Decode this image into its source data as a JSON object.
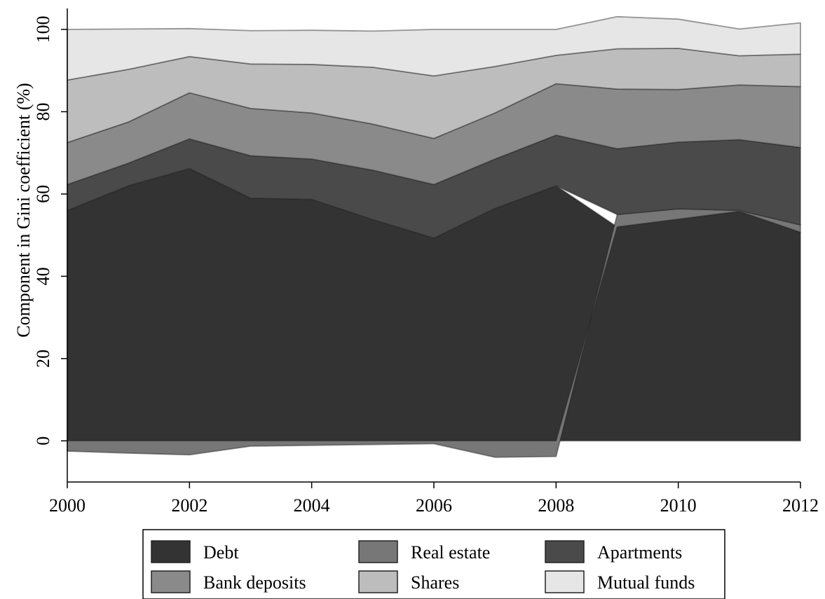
{
  "chart_data": {
    "type": "area",
    "title": "",
    "xlabel": "",
    "ylabel": "Component in Gini coefficient (%)",
    "x": [
      2000,
      2001,
      2002,
      2003,
      2004,
      2005,
      2006,
      2007,
      2008,
      2009,
      2010,
      2011,
      2012
    ],
    "xlim": [
      2000,
      2012
    ],
    "ylim": [
      -10,
      100
    ],
    "xticks": [
      2000,
      2002,
      2004,
      2006,
      2008,
      2010,
      2012
    ],
    "yticks": [
      0,
      20,
      40,
      60,
      80,
      100
    ],
    "stacked": true,
    "grid": false,
    "legend_position": "bottom",
    "legend_columns": 3,
    "series": [
      {
        "name": "Debt",
        "color": "#333333",
        "values": [
          56,
          62,
          66.2,
          59,
          58.7,
          53.8,
          49.3,
          56.5,
          62,
          52,
          53.9,
          55.8,
          50.7
        ]
      },
      {
        "name": "Real estate",
        "color": "#777777",
        "values": [
          -2.5,
          -3,
          -3.4,
          -1.3,
          -1.1,
          -0.9,
          -0.7,
          -4,
          -3.8,
          3,
          2.5,
          0.2,
          1.8
        ]
      },
      {
        "name": "Apartments",
        "color": "#4a4a4a",
        "values": [
          6.3,
          5.5,
          7.2,
          10.3,
          9.8,
          12,
          13,
          12,
          12.3,
          16,
          16.2,
          17.2,
          18.8
        ]
      },
      {
        "name": "Bank deposits",
        "color": "#8a8a8a",
        "values": [
          10.2,
          10,
          11.2,
          11.5,
          11.2,
          11.2,
          11.2,
          11.2,
          12.5,
          14.5,
          12.8,
          13.3,
          14.8
        ]
      },
      {
        "name": "Shares",
        "color": "#bdbdbd",
        "values": [
          15.2,
          12.8,
          8.8,
          10.8,
          11.8,
          13.8,
          15.2,
          11.3,
          6.9,
          9.8,
          10,
          7.1,
          7.9
        ]
      },
      {
        "name": "Mutual funds",
        "color": "#e6e6e6",
        "values": [
          12.3,
          9.8,
          6.8,
          8.1,
          8.3,
          8.8,
          11.3,
          9,
          6.3,
          7.8,
          7.1,
          6.5,
          7.6
        ]
      }
    ]
  }
}
